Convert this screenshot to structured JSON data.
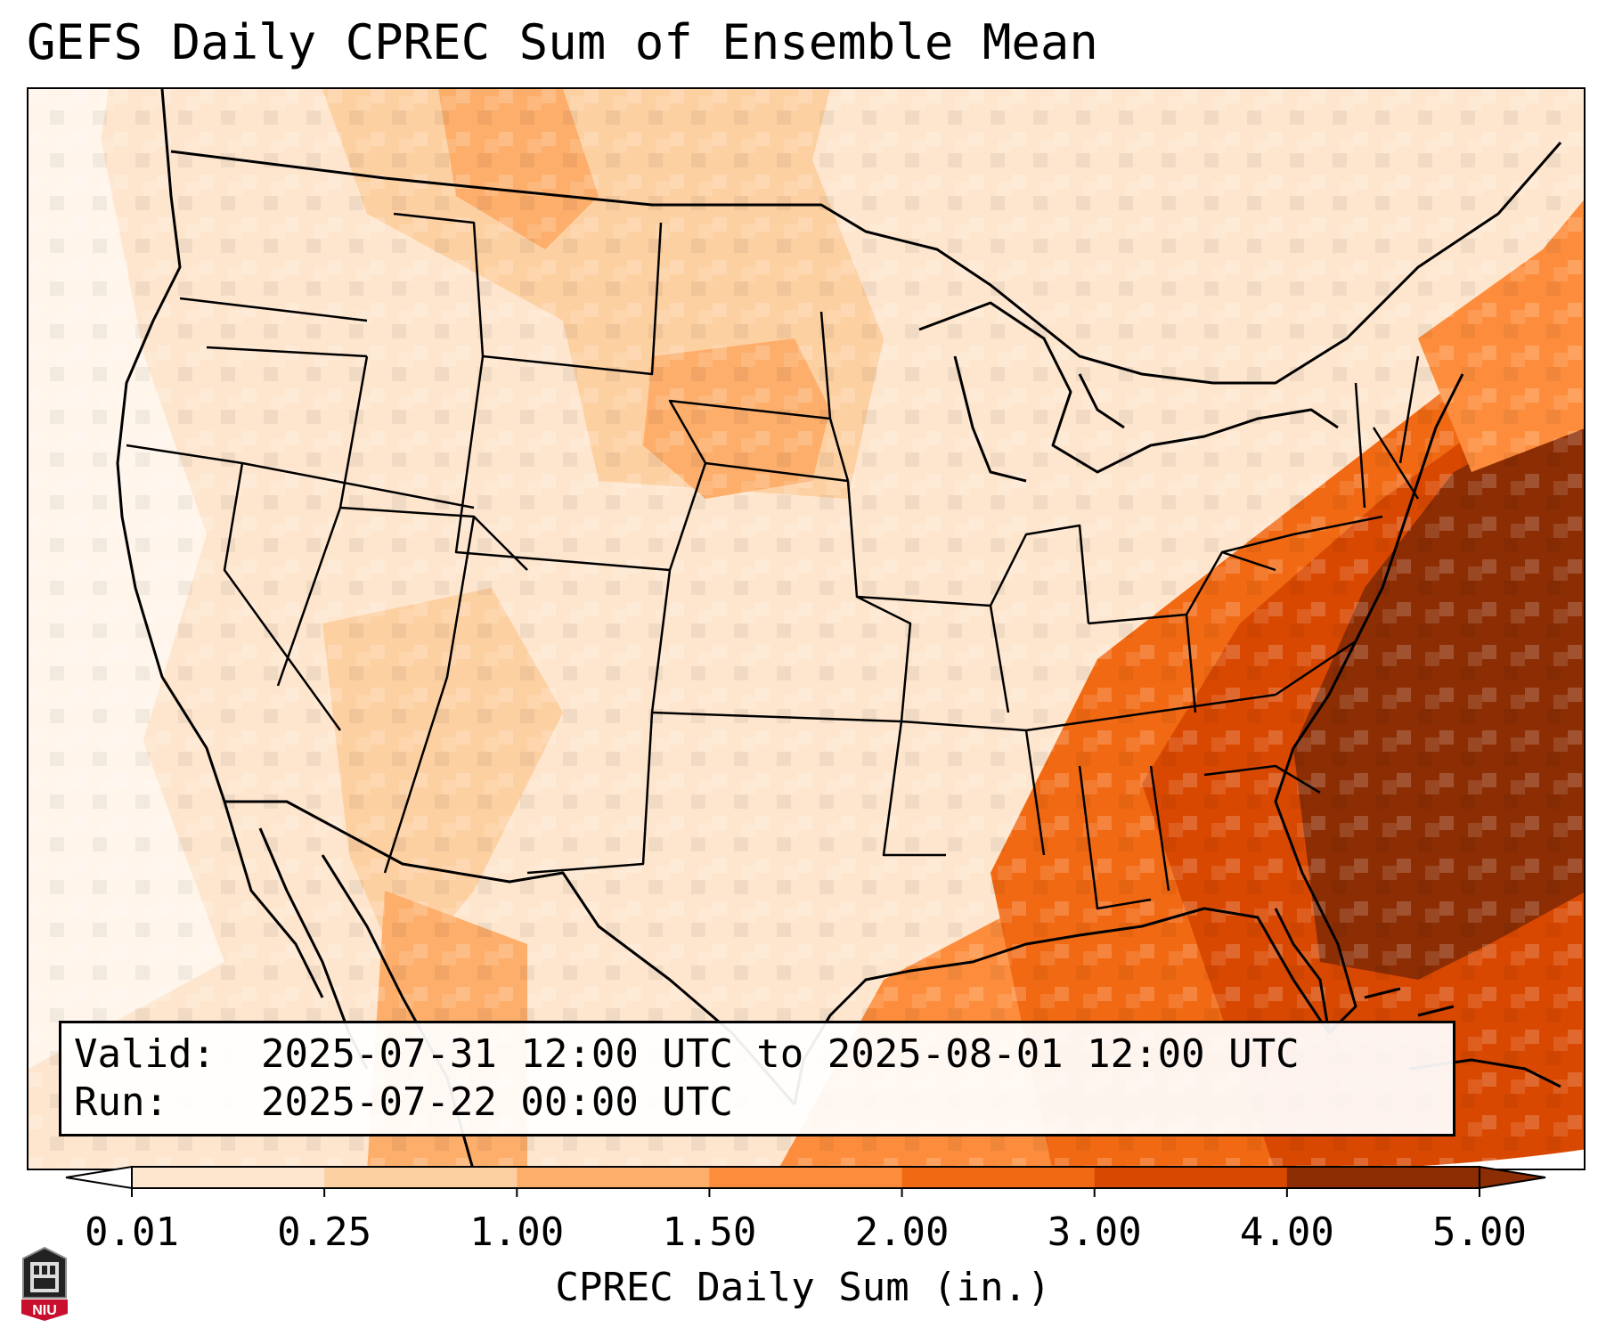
{
  "title": "GEFS Daily CPREC Sum of Ensemble Mean",
  "info": {
    "valid_label": "Valid:",
    "valid_value": "2025-07-31 12:00 UTC to 2025-08-01 12:00 UTC",
    "run_label": "Run:",
    "run_value": "2025-07-22 00:00 UTC"
  },
  "colorbar": {
    "label": "CPREC Daily Sum (in.)",
    "ticks": [
      "0.01",
      "0.25",
      "1.00",
      "1.50",
      "2.00",
      "3.00",
      "4.00",
      "5.00"
    ],
    "colors": [
      "#fff5eb",
      "#fee6ce",
      "#fdd0a2",
      "#fdae6b",
      "#fd8d3c",
      "#f16913",
      "#d94801",
      "#8c2d04"
    ],
    "extend": "both"
  },
  "logo": {
    "text": "NIU",
    "color": "#c8102e"
  }
}
